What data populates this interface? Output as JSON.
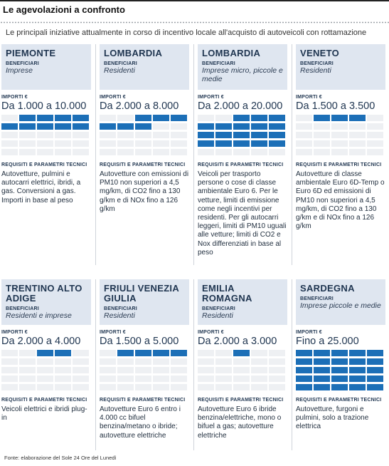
{
  "header": {
    "title": "Le agevolazioni a confronto",
    "subtitle": "Le principali iniziative attualmente in corso di incentivo locale all'acquisto di autoveicoli con rottamazione"
  },
  "labels": {
    "beneficiari": "BENEFICIARI",
    "importi": "IMPORTI €",
    "requisiti": "REQUISITI E PARAMETRI TECNICI"
  },
  "colors": {
    "bar_on": "#1c6fb7",
    "bar_off": "#eef0f3",
    "head_bg": "#dfe6f0"
  },
  "bar_grid": {
    "columns": 5,
    "rows": 5,
    "unit_eur": 1000,
    "max_eur": 25000
  },
  "cards": [
    {
      "region": "PIEMONTE",
      "beneficiari": "Imprese",
      "importo": "Da 1.000 a 10.000",
      "min_eur": 1000,
      "max_eur": 10000,
      "requisiti": "Autovetture, pulmini e autocarri elettrici, ibridi, a gas. Conversioni a gas. Importi in base al peso"
    },
    {
      "region": "LOMBARDIA",
      "beneficiari": "Residenti",
      "importo": "Da 2.000 a 8.000",
      "min_eur": 2000,
      "max_eur": 8000,
      "requisiti": "Autovetture con emissioni di PM10 non superiori a 4,5 mg/km, di CO2 fino a 130 g/km e di NOx fino a 126 g/km"
    },
    {
      "region": "LOMBARDIA",
      "beneficiari": "Imprese micro, piccole e medie",
      "importo": "Da 2.000 a 20.000",
      "min_eur": 2000,
      "max_eur": 20000,
      "requisiti": "Veicoli per trasporto persone o cose di classe ambientale Euro 6. Per le vetture, limiti di emissione come negli incentivi per residenti. Per gli autocarri leggeri, limiti di PM10 uguali alle vetture; limiti di CO2 e Nox differenziati in base al peso"
    },
    {
      "region": "VENETO",
      "beneficiari": "Residenti",
      "importo": "Da 1.500 a 3.500",
      "min_eur": 1500,
      "max_eur": 3500,
      "requisiti": "Autovetture di classe ambientale Euro 6D-Temp o Euro 6D ed emissioni di PM10 non superiori a 4,5 mg/km, di CO2 fino a 130 g/km e di NOx fino a 126 g/km"
    },
    {
      "region": "TRENTINO ALTO ADIGE",
      "beneficiari": "Residenti e imprese",
      "importo": "Da 2.000 a 4.000",
      "min_eur": 2000,
      "max_eur": 4000,
      "requisiti": "Veicoli elettrici e ibridi plug-in"
    },
    {
      "region": "FRIULI VENEZIA GIULIA",
      "beneficiari": "Residenti",
      "importo": "Da 1.500 a 5.000",
      "min_eur": 1500,
      "max_eur": 5000,
      "requisiti": "Autovetture Euro 6 entro i 4.000 cc bifuel benzina/metano o ibride; autovetture elettriche"
    },
    {
      "region": "EMILIA ROMAGNA",
      "beneficiari": "Residenti",
      "importo": "Da 2.000 a 3.000",
      "min_eur": 2000,
      "max_eur": 3000,
      "requisiti": "Autovetture Euro 6 ibride benzina/elettriche, mono o bifuel a gas; autovetture elettriche"
    },
    {
      "region": "SARDEGNA",
      "beneficiari": "Imprese piccole e medie",
      "importo": "Fino a 25.000",
      "min_eur": 0,
      "max_eur": 25000,
      "requisiti": "Autovetture, furgoni e pulmini, solo a trazione elettrica"
    }
  ],
  "footer": {
    "source": "Fonte: elaborazione del Sole 24 Ore del Lunedì"
  }
}
